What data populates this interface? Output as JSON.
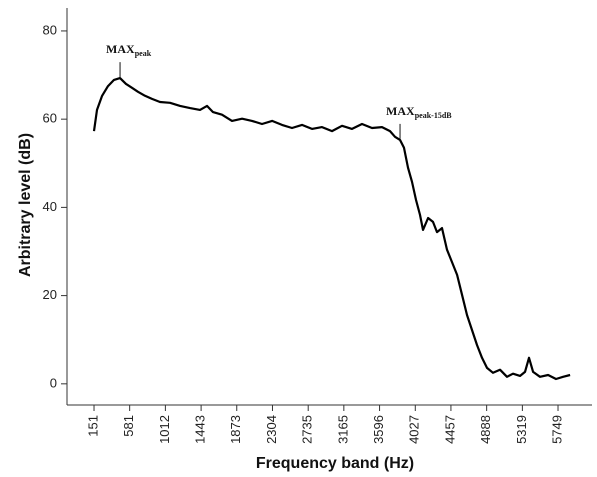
{
  "chart_data": {
    "type": "line",
    "x_label": "Frequency band (Hz)",
    "y_label": "Arbitrary level (dB)",
    "x": [
      151,
      187,
      248,
      320,
      392,
      465,
      537,
      609,
      682,
      766,
      851,
      947,
      1068,
      1189,
      1309,
      1430,
      1514,
      1587,
      1695,
      1816,
      1937,
      2057,
      2178,
      2299,
      2419,
      2540,
      2660,
      2781,
      2902,
      3022,
      3143,
      3264,
      3384,
      3505,
      3626,
      3722,
      3782,
      3843,
      3891,
      3939,
      3987,
      4036,
      4084,
      4120,
      4181,
      4241,
      4289,
      4349,
      4410,
      4470,
      4531,
      4591,
      4651,
      4711,
      4772,
      4832,
      4892,
      4965,
      5049,
      5134,
      5206,
      5291,
      5351,
      5399,
      5448,
      5532,
      5629,
      5725,
      5810,
      5895
    ],
    "series": [
      {
        "color": "#000000",
        "values": [
          57.3,
          62.1,
          65.3,
          67.5,
          68.9,
          69.3,
          68.0,
          67.1,
          66.2,
          65.3,
          64.6,
          63.9,
          63.7,
          63.0,
          62.5,
          62.1,
          63.0,
          61.6,
          61.0,
          59.6,
          60.1,
          59.6,
          58.9,
          59.6,
          58.7,
          58.0,
          58.7,
          57.8,
          58.2,
          57.3,
          58.5,
          57.8,
          58.9,
          58.0,
          58.2,
          57.3,
          56.0,
          55.3,
          53.5,
          49.0,
          45.8,
          41.7,
          38.3,
          34.9,
          37.6,
          36.7,
          34.4,
          35.3,
          30.4,
          27.6,
          24.7,
          20.2,
          15.6,
          12.2,
          8.8,
          5.9,
          3.6,
          2.5,
          3.2,
          1.6,
          2.3,
          1.8,
          2.7,
          5.9,
          2.7,
          1.6,
          2.0,
          1.1,
          1.6,
          2.0
        ]
      }
    ],
    "xlim": [
      -175,
      6159
    ],
    "ylim": [
      -4.8,
      85.2
    ],
    "xticks": [
      151,
      581,
      1012,
      1443,
      1873,
      2304,
      2735,
      3165,
      3596,
      4027,
      4457,
      4888,
      5319,
      5749
    ],
    "yticks": [
      0,
      20,
      40,
      60,
      80
    ],
    "annotations": [
      {
        "text": "MAX",
        "subscript": "peak",
        "x": 465,
        "y": 69.3
      },
      {
        "text": "MAX",
        "subscript": "peak-15dB",
        "x": 3843,
        "y": 55.3
      }
    ]
  }
}
